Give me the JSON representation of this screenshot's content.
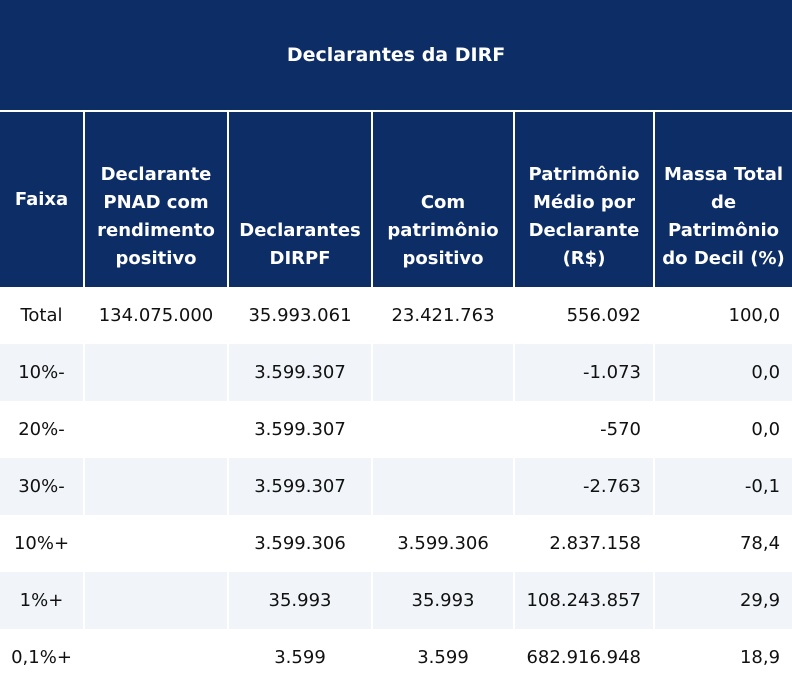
{
  "title": "Declarantes da DIRF",
  "columns": [
    "Faixa",
    "Declarante PNAD com rendimento positivo",
    "Declarantes DIRPF",
    "Com patrimônio positivo",
    "Patrimônio Médio por Declarante (R$)",
    "Massa Total de Patrimônio do Decil (%)"
  ],
  "rows": [
    {
      "faixa": "Total",
      "pnad": "134.075.000",
      "dirpf": "35.993.061",
      "com_patrimonio": "23.421.763",
      "patrimonio_medio": "556.092",
      "massa_total": "100,0"
    },
    {
      "faixa": "10%-",
      "pnad": "",
      "dirpf": "3.599.307",
      "com_patrimonio": "",
      "patrimonio_medio": "-1.073",
      "massa_total": "0,0"
    },
    {
      "faixa": "20%-",
      "pnad": "",
      "dirpf": "3.599.307",
      "com_patrimonio": "",
      "patrimonio_medio": "-570",
      "massa_total": "0,0"
    },
    {
      "faixa": "30%-",
      "pnad": "",
      "dirpf": "3.599.307",
      "com_patrimonio": "",
      "patrimonio_medio": "-2.763",
      "massa_total": "-0,1"
    },
    {
      "faixa": "10%+",
      "pnad": "",
      "dirpf": "3.599.306",
      "com_patrimonio": "3.599.306",
      "patrimonio_medio": "2.837.158",
      "massa_total": "78,4"
    },
    {
      "faixa": "1%+",
      "pnad": "",
      "dirpf": "35.993",
      "com_patrimonio": "35.993",
      "patrimonio_medio": "108.243.857",
      "massa_total": "29,9"
    },
    {
      "faixa": "0,1%+",
      "pnad": "",
      "dirpf": "3.599",
      "com_patrimonio": "3.599",
      "patrimonio_medio": "682.916.948",
      "massa_total": "18,9"
    }
  ]
}
